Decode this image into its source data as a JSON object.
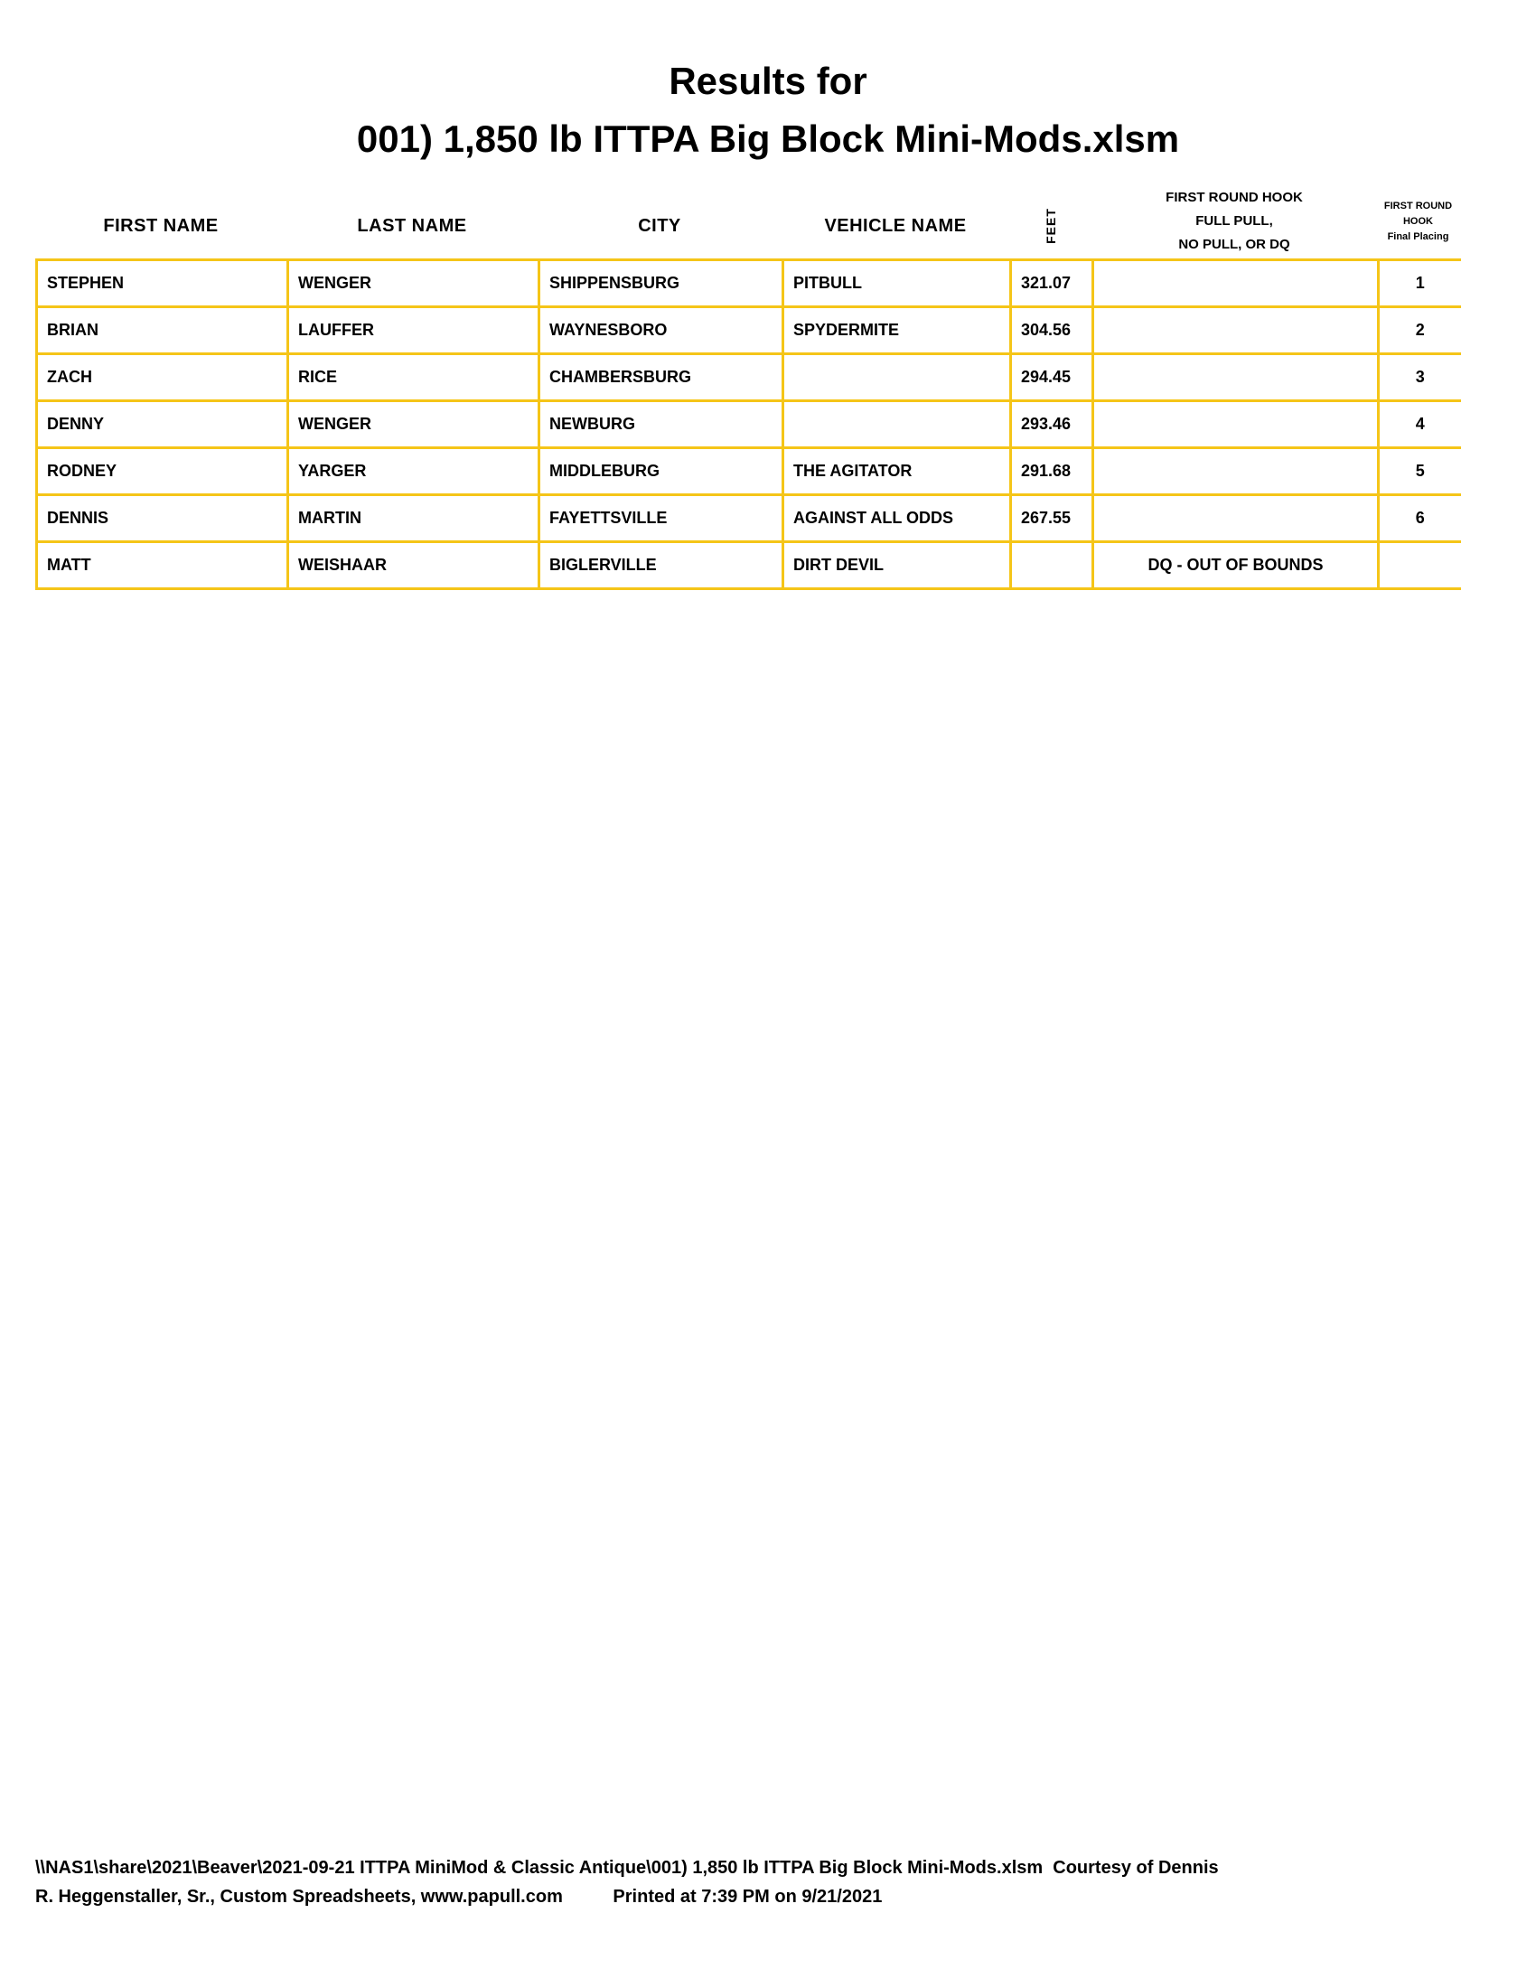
{
  "title": {
    "line1": "Results for",
    "line2": "001) 1,850 lb ITTPA Big Block Mini-Mods.xlsm"
  },
  "columns": {
    "first_name": "FIRST NAME",
    "last_name": "LAST NAME",
    "city": "CITY",
    "vehicle": "VEHICLE NAME",
    "feet": "FEET",
    "hook_line1": "FIRST ROUND HOOK",
    "hook_line2": "FULL PULL,",
    "hook_line3": "NO PULL, OR DQ",
    "place_line1": "FIRST ROUND",
    "place_line2": "HOOK",
    "place_line3": "Final Placing"
  },
  "rows": [
    {
      "first": "STEPHEN",
      "last": "WENGER",
      "city": "SHIPPENSBURG",
      "vehicle": "PITBULL",
      "feet": "321.07",
      "status": "",
      "place": "1"
    },
    {
      "first": "BRIAN",
      "last": "LAUFFER",
      "city": "WAYNESBORO",
      "vehicle": "SPYDERMITE",
      "feet": "304.56",
      "status": "",
      "place": "2"
    },
    {
      "first": "ZACH",
      "last": "RICE",
      "city": "CHAMBERSBURG",
      "vehicle": "",
      "feet": "294.45",
      "status": "",
      "place": "3"
    },
    {
      "first": "DENNY",
      "last": "WENGER",
      "city": "NEWBURG",
      "vehicle": "",
      "feet": "293.46",
      "status": "",
      "place": "4"
    },
    {
      "first": "RODNEY",
      "last": "YARGER",
      "city": "MIDDLEBURG",
      "vehicle": "THE AGITATOR",
      "feet": "291.68",
      "status": "",
      "place": "5"
    },
    {
      "first": "DENNIS",
      "last": "MARTIN",
      "city": "FAYETTSVILLE",
      "vehicle": "AGAINST ALL ODDS",
      "feet": "267.55",
      "status": "",
      "place": "6"
    },
    {
      "first": "MATT",
      "last": "WEISHAAR",
      "city": "BIGLERVILLE",
      "vehicle": "DIRT DEVIL",
      "feet": "",
      "status": "DQ - OUT OF BOUNDS",
      "place": ""
    }
  ],
  "footer": {
    "line1": "\\\\NAS1\\share\\2021\\Beaver\\2021-09-21 ITTPA MiniMod & Classic Antique\\001) 1,850 lb ITTPA Big Block Mini-Mods.xlsm  Courtesy of Dennis",
    "line2": "R. Heggenstaller, Sr., Custom Spreadsheets, www.papull.com          Printed at 7:39 PM on 9/21/2021"
  },
  "colors": {
    "grid": "#F5C518"
  }
}
